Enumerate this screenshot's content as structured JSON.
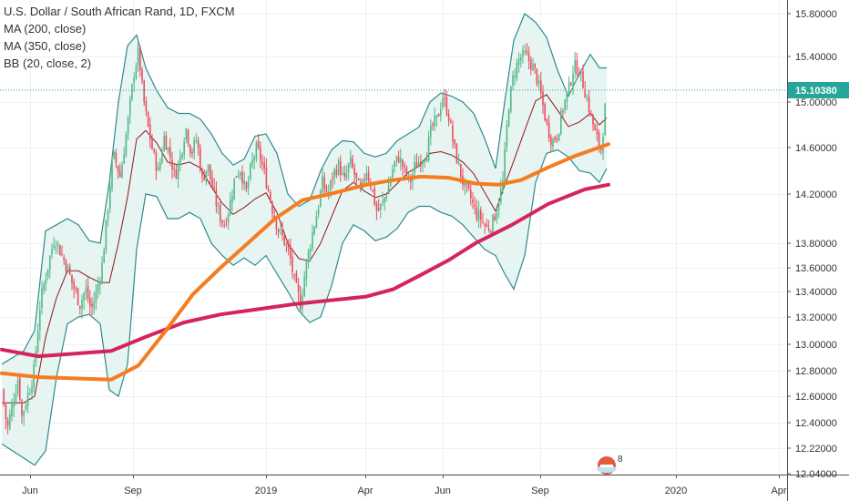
{
  "legend": {
    "title": "U.S. Dollar / South African Rand, 1D, FXCM",
    "ma200": "MA (200, close)",
    "ma350": "MA (350, close)",
    "bb": "BB (20, close, 2)"
  },
  "badge_count": "8",
  "colors": {
    "up": "#53b987",
    "down": "#eb4d5c",
    "bb_line": "#2e8b8b",
    "bb_fill": "#e6f4f2",
    "bb_basis": "#8b1a1a",
    "ma200": "#d5245c",
    "ma350": "#f57c1f",
    "price_tag": "#26a69a",
    "grid": "#eef0f2"
  },
  "chart_data": {
    "type": "candlestick",
    "title": "U.S. Dollar / South African Rand, 1D, FXCM",
    "x_labels": [
      "Jun",
      "Sep",
      "2019",
      "Apr",
      "Jun",
      "Sep",
      "2020",
      "Apr"
    ],
    "y_labels": [
      "15.80000",
      "15.40000",
      "15.00000",
      "14.60000",
      "14.20000",
      "13.80000",
      "13.60000",
      "13.40000",
      "13.20000",
      "13.00000",
      "12.80000",
      "12.60000",
      "12.40000",
      "12.22000",
      "12.04000"
    ],
    "last_price": 15.1038,
    "last_price_label": "15.10380",
    "close_path": [
      [
        0,
        12.65
      ],
      [
        6,
        12.35
      ],
      [
        12,
        12.55
      ],
      [
        18,
        12.75
      ],
      [
        22,
        12.45
      ],
      [
        28,
        12.6
      ],
      [
        35,
        12.78
      ],
      [
        42,
        13.3
      ],
      [
        50,
        13.6
      ],
      [
        58,
        13.85
      ],
      [
        66,
        13.7
      ],
      [
        72,
        13.6
      ],
      [
        78,
        13.45
      ],
      [
        86,
        13.3
      ],
      [
        92,
        13.42
      ],
      [
        98,
        13.25
      ],
      [
        104,
        13.4
      ],
      [
        110,
        13.62
      ],
      [
        116,
        14.05
      ],
      [
        122,
        14.55
      ],
      [
        130,
        14.35
      ],
      [
        138,
        14.8
      ],
      [
        145,
        15.25
      ],
      [
        150,
        15.45
      ],
      [
        155,
        15.05
      ],
      [
        160,
        14.8
      ],
      [
        166,
        14.55
      ],
      [
        172,
        14.38
      ],
      [
        178,
        14.7
      ],
      [
        184,
        14.55
      ],
      [
        190,
        14.35
      ],
      [
        196,
        14.52
      ],
      [
        202,
        14.78
      ],
      [
        208,
        14.55
      ],
      [
        214,
        14.68
      ],
      [
        220,
        14.32
      ],
      [
        226,
        14.45
      ],
      [
        232,
        14.22
      ],
      [
        238,
        14.05
      ],
      [
        244,
        13.95
      ],
      [
        250,
        14.1
      ],
      [
        256,
        14.35
      ],
      [
        262,
        14.42
      ],
      [
        268,
        14.2
      ],
      [
        274,
        14.45
      ],
      [
        280,
        14.6
      ],
      [
        286,
        14.45
      ],
      [
        292,
        14.25
      ],
      [
        298,
        14.05
      ],
      [
        304,
        13.9
      ],
      [
        310,
        13.82
      ],
      [
        316,
        13.7
      ],
      [
        322,
        13.45
      ],
      [
        328,
        13.3
      ],
      [
        334,
        13.62
      ],
      [
        340,
        13.85
      ],
      [
        346,
        14.05
      ],
      [
        352,
        14.3
      ],
      [
        358,
        14.2
      ],
      [
        364,
        14.38
      ],
      [
        370,
        14.45
      ],
      [
        376,
        14.3
      ],
      [
        382,
        14.48
      ],
      [
        388,
        14.35
      ],
      [
        394,
        14.2
      ],
      [
        400,
        14.42
      ],
      [
        406,
        14.25
      ],
      [
        412,
        14.05
      ],
      [
        418,
        14.12
      ],
      [
        424,
        14.25
      ],
      [
        430,
        14.45
      ],
      [
        436,
        14.52
      ],
      [
        442,
        14.4
      ],
      [
        448,
        14.3
      ],
      [
        454,
        14.45
      ],
      [
        460,
        14.5
      ],
      [
        466,
        14.55
      ],
      [
        472,
        14.78
      ],
      [
        478,
        14.85
      ],
      [
        484,
        15.05
      ],
      [
        490,
        14.9
      ],
      [
        496,
        14.62
      ],
      [
        502,
        14.42
      ],
      [
        508,
        14.25
      ],
      [
        514,
        14.18
      ],
      [
        520,
        14.05
      ],
      [
        526,
        14.0
      ],
      [
        532,
        13.92
      ],
      [
        538,
        13.95
      ],
      [
        544,
        14.1
      ],
      [
        550,
        14.3
      ],
      [
        556,
        14.95
      ],
      [
        562,
        15.25
      ],
      [
        568,
        15.38
      ],
      [
        574,
        15.42
      ],
      [
        580,
        15.35
      ],
      [
        586,
        15.25
      ],
      [
        592,
        15.05
      ],
      [
        598,
        14.8
      ],
      [
        604,
        14.65
      ],
      [
        610,
        14.72
      ],
      [
        616,
        14.95
      ],
      [
        622,
        15.1
      ],
      [
        628,
        15.32
      ],
      [
        634,
        15.28
      ],
      [
        640,
        15.1
      ],
      [
        646,
        14.9
      ],
      [
        652,
        14.7
      ],
      [
        658,
        14.58
      ],
      [
        664,
        15.1
      ]
    ],
    "ma200_path": [
      [
        0,
        12.96
      ],
      [
        40,
        12.91
      ],
      [
        80,
        12.93
      ],
      [
        120,
        12.95
      ],
      [
        160,
        13.06
      ],
      [
        200,
        13.16
      ],
      [
        240,
        13.22
      ],
      [
        280,
        13.26
      ],
      [
        320,
        13.3
      ],
      [
        360,
        13.33
      ],
      [
        400,
        13.36
      ],
      [
        430,
        13.42
      ],
      [
        460,
        13.54
      ],
      [
        490,
        13.66
      ],
      [
        520,
        13.8
      ],
      [
        560,
        13.95
      ],
      [
        600,
        14.12
      ],
      [
        640,
        14.24
      ],
      [
        666,
        14.28
      ]
    ],
    "ma350_path": [
      [
        0,
        12.78
      ],
      [
        40,
        12.75
      ],
      [
        80,
        12.74
      ],
      [
        120,
        12.73
      ],
      [
        150,
        12.84
      ],
      [
        180,
        13.1
      ],
      [
        210,
        13.38
      ],
      [
        240,
        13.6
      ],
      [
        270,
        13.8
      ],
      [
        300,
        14.0
      ],
      [
        330,
        14.15
      ],
      [
        360,
        14.2
      ],
      [
        400,
        14.28
      ],
      [
        430,
        14.32
      ],
      [
        460,
        14.35
      ],
      [
        490,
        14.34
      ],
      [
        520,
        14.29
      ],
      [
        545,
        14.28
      ],
      [
        570,
        14.32
      ],
      [
        600,
        14.43
      ],
      [
        630,
        14.53
      ],
      [
        666,
        14.63
      ]
    ],
    "bb_upper_path": [
      [
        0,
        12.85
      ],
      [
        12,
        12.9
      ],
      [
        24,
        12.95
      ],
      [
        36,
        13.1
      ],
      [
        48,
        13.9
      ],
      [
        60,
        13.95
      ],
      [
        72,
        14.0
      ],
      [
        84,
        13.95
      ],
      [
        96,
        13.82
      ],
      [
        108,
        13.8
      ],
      [
        118,
        14.3
      ],
      [
        128,
        15.0
      ],
      [
        138,
        15.5
      ],
      [
        148,
        15.6
      ],
      [
        158,
        15.3
      ],
      [
        170,
        15.1
      ],
      [
        182,
        14.95
      ],
      [
        194,
        14.9
      ],
      [
        206,
        14.9
      ],
      [
        218,
        14.85
      ],
      [
        230,
        14.72
      ],
      [
        242,
        14.55
      ],
      [
        254,
        14.45
      ],
      [
        266,
        14.5
      ],
      [
        278,
        14.7
      ],
      [
        290,
        14.72
      ],
      [
        302,
        14.55
      ],
      [
        314,
        14.2
      ],
      [
        326,
        14.1
      ],
      [
        338,
        14.15
      ],
      [
        350,
        14.4
      ],
      [
        362,
        14.58
      ],
      [
        374,
        14.66
      ],
      [
        386,
        14.65
      ],
      [
        398,
        14.55
      ],
      [
        410,
        14.52
      ],
      [
        422,
        14.55
      ],
      [
        434,
        14.66
      ],
      [
        446,
        14.72
      ],
      [
        458,
        14.78
      ],
      [
        470,
        15.0
      ],
      [
        482,
        15.08
      ],
      [
        494,
        15.05
      ],
      [
        506,
        15.0
      ],
      [
        518,
        14.9
      ],
      [
        530,
        14.68
      ],
      [
        542,
        14.42
      ],
      [
        552,
        15.0
      ],
      [
        562,
        15.55
      ],
      [
        574,
        15.8
      ],
      [
        586,
        15.72
      ],
      [
        598,
        15.58
      ],
      [
        610,
        15.28
      ],
      [
        622,
        15.05
      ],
      [
        634,
        15.25
      ],
      [
        646,
        15.42
      ],
      [
        656,
        15.3
      ],
      [
        664,
        15.3
      ]
    ],
    "bb_lower_path": [
      [
        0,
        12.25
      ],
      [
        12,
        12.2
      ],
      [
        24,
        12.15
      ],
      [
        36,
        12.1
      ],
      [
        48,
        12.2
      ],
      [
        60,
        12.75
      ],
      [
        72,
        13.15
      ],
      [
        84,
        13.2
      ],
      [
        96,
        13.22
      ],
      [
        108,
        13.15
      ],
      [
        118,
        12.65
      ],
      [
        128,
        12.6
      ],
      [
        138,
        12.85
      ],
      [
        148,
        13.75
      ],
      [
        158,
        14.2
      ],
      [
        170,
        14.18
      ],
      [
        182,
        14.0
      ],
      [
        194,
        14.0
      ],
      [
        206,
        14.05
      ],
      [
        218,
        14.0
      ],
      [
        230,
        13.8
      ],
      [
        242,
        13.7
      ],
      [
        254,
        13.62
      ],
      [
        266,
        13.68
      ],
      [
        278,
        13.62
      ],
      [
        290,
        13.7
      ],
      [
        302,
        13.55
      ],
      [
        314,
        13.4
      ],
      [
        326,
        13.25
      ],
      [
        338,
        13.16
      ],
      [
        350,
        13.2
      ],
      [
        362,
        13.45
      ],
      [
        374,
        13.8
      ],
      [
        386,
        13.95
      ],
      [
        398,
        13.9
      ],
      [
        410,
        13.82
      ],
      [
        422,
        13.85
      ],
      [
        434,
        13.92
      ],
      [
        446,
        14.05
      ],
      [
        458,
        14.1
      ],
      [
        470,
        14.1
      ],
      [
        482,
        14.05
      ],
      [
        494,
        14.02
      ],
      [
        506,
        13.95
      ],
      [
        518,
        13.85
      ],
      [
        530,
        13.75
      ],
      [
        542,
        13.7
      ],
      [
        552,
        13.55
      ],
      [
        562,
        13.42
      ],
      [
        574,
        13.7
      ],
      [
        586,
        14.3
      ],
      [
        598,
        14.55
      ],
      [
        610,
        14.58
      ],
      [
        622,
        14.52
      ],
      [
        634,
        14.4
      ],
      [
        646,
        14.38
      ],
      [
        656,
        14.3
      ],
      [
        664,
        14.42
      ]
    ]
  }
}
